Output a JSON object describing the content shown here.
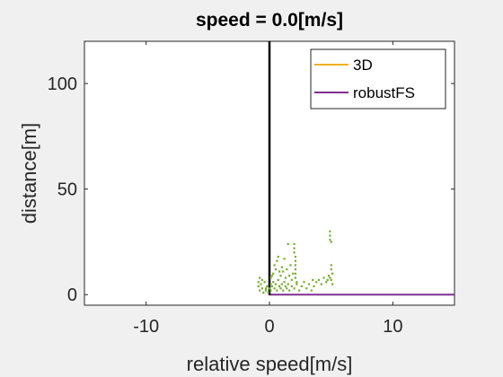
{
  "chart_data": {
    "type": "scatter",
    "title": "speed = 0.0[m/s]",
    "xlabel": "relative speed[m/s]",
    "ylabel": "distance[m]",
    "xlim": [
      -15,
      15
    ],
    "ylim": [
      -5,
      120
    ],
    "xticks": [
      -10,
      0,
      10
    ],
    "yticks": [
      0,
      50,
      100
    ],
    "xtick_labels": [
      "-10",
      "0",
      "10"
    ],
    "ytick_labels": [
      "0",
      "50",
      "100"
    ],
    "grid": false,
    "legend_position": "top-right",
    "legend": [
      {
        "name": "3D",
        "color": "#edb120"
      },
      {
        "name": "robustFS",
        "color": "#7e2f8e"
      }
    ],
    "series": [
      {
        "name": "3D",
        "kind": "line",
        "color": "#edb120",
        "points": []
      },
      {
        "name": "robustFS",
        "kind": "line",
        "color": "#7e2f8e",
        "points": [
          [
            0,
            50
          ],
          [
            0,
            0
          ],
          [
            15,
            0
          ]
        ]
      },
      {
        "name": "reference",
        "kind": "line",
        "color": "#000000",
        "points": [
          [
            0,
            120
          ],
          [
            0,
            0
          ]
        ]
      },
      {
        "name": "measurements",
        "kind": "scatter",
        "color": "#77ac30",
        "points": [
          [
            -0.8,
            8
          ],
          [
            -0.9,
            6
          ],
          [
            -0.7,
            5
          ],
          [
            -0.6,
            3
          ],
          [
            -0.8,
            2
          ],
          [
            -0.5,
            1
          ],
          [
            -0.9,
            4
          ],
          [
            -0.6,
            7
          ],
          [
            -0.3,
            2
          ],
          [
            -0.2,
            4
          ],
          [
            -0.4,
            6
          ],
          [
            -0.1,
            1
          ],
          [
            -0.3,
            3
          ],
          [
            0.1,
            2
          ],
          [
            0.2,
            4
          ],
          [
            0.3,
            6
          ],
          [
            0.1,
            8
          ],
          [
            0.4,
            3
          ],
          [
            0.5,
            5
          ],
          [
            0.6,
            2
          ],
          [
            0.7,
            7
          ],
          [
            0.8,
            4
          ],
          [
            0.9,
            3
          ],
          [
            1.0,
            5
          ],
          [
            1.1,
            2
          ],
          [
            1.2,
            6
          ],
          [
            1.3,
            4
          ],
          [
            1.4,
            3
          ],
          [
            1.5,
            5
          ],
          [
            1.6,
            2
          ],
          [
            1.8,
            4
          ],
          [
            2.0,
            3
          ],
          [
            2.2,
            5
          ],
          [
            2.4,
            2
          ],
          [
            2.6,
            4
          ],
          [
            2.8,
            6
          ],
          [
            3.0,
            3
          ],
          [
            3.2,
            5
          ],
          [
            3.4,
            2
          ],
          [
            3.6,
            4
          ],
          [
            3.8,
            6
          ],
          [
            4.0,
            7
          ],
          [
            4.2,
            5
          ],
          [
            4.4,
            8
          ],
          [
            4.6,
            6
          ],
          [
            4.8,
            9
          ],
          [
            5.0,
            7
          ],
          [
            5.1,
            5
          ],
          [
            0.3,
            10
          ],
          [
            0.5,
            12
          ],
          [
            0.4,
            14
          ],
          [
            0.6,
            16
          ],
          [
            0.7,
            18
          ],
          [
            1.0,
            13
          ],
          [
            1.2,
            17
          ],
          [
            1.4,
            12
          ],
          [
            1.6,
            9
          ],
          [
            1.7,
            14
          ],
          [
            1.9,
            10
          ],
          [
            2.0,
            20
          ],
          [
            2.0,
            22
          ],
          [
            2.0,
            24
          ],
          [
            1.5,
            24
          ],
          [
            2.1,
            18
          ],
          [
            2.1,
            16
          ],
          [
            2.1,
            14
          ],
          [
            2.1,
            12
          ],
          [
            2.1,
            10
          ],
          [
            2.1,
            8
          ],
          [
            2.2,
            6
          ],
          [
            0.9,
            9
          ],
          [
            1.1,
            11
          ],
          [
            4.9,
            30
          ],
          [
            4.9,
            28
          ],
          [
            4.9,
            26
          ],
          [
            5.0,
            25
          ],
          [
            5.0,
            14
          ],
          [
            5.0,
            12
          ],
          [
            5.1,
            10
          ],
          [
            4.9,
            8
          ],
          [
            4.7,
            7
          ],
          [
            0.0,
            3
          ],
          [
            0.1,
            5
          ],
          [
            0.2,
            9
          ],
          [
            0.8,
            11
          ],
          [
            1.3,
            8
          ],
          [
            1.8,
            7
          ],
          [
            3.5,
            7
          ]
        ]
      }
    ]
  }
}
